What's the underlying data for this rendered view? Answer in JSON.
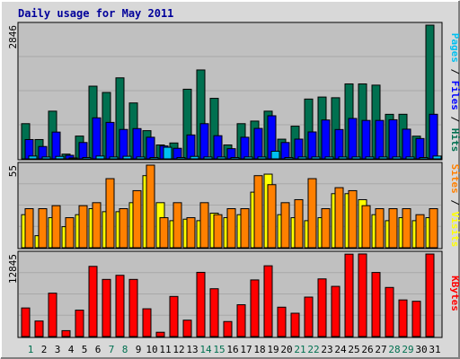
{
  "chart_data": {
    "type": "bar",
    "title": "Daily usage for May 2011",
    "categories": [
      "1",
      "2",
      "3",
      "4",
      "5",
      "6",
      "7",
      "8",
      "9",
      "10",
      "11",
      "12",
      "13",
      "14",
      "15",
      "16",
      "17",
      "18",
      "19",
      "20",
      "21",
      "22",
      "23",
      "24",
      "25",
      "26",
      "27",
      "28",
      "29",
      "30",
      "31"
    ],
    "weekend_days": [
      "1",
      "7",
      "8",
      "14",
      "15",
      "21",
      "22",
      "28",
      "29"
    ],
    "colors": {
      "background": "#c0c0c0",
      "frame": "#d8d8d8",
      "title": "#00009a",
      "pages": "#00c0f0",
      "files": "#0000ff",
      "hits": "#007050",
      "visits": "#ffff00",
      "sites": "#ff8000",
      "kbytes": "#ff0000",
      "weekday_label": "#000000",
      "weekend_label": "#007050"
    },
    "panels": [
      {
        "name": "hits-files-pages",
        "ymax_label": "2846",
        "ylim": [
          0,
          2846
        ],
        "legend": [
          {
            "text": "Pages",
            "color": "#00c0f0"
          },
          {
            "text": " / ",
            "color": "#000000"
          },
          {
            "text": "Files",
            "color": "#0000ff"
          },
          {
            "text": " / ",
            "color": "#000000"
          },
          {
            "text": "Hits",
            "color": "#007050"
          }
        ],
        "series": [
          {
            "name": "Hits",
            "color": "#007050",
            "values": [
              749,
              411,
              1015,
              101,
              485,
              1547,
              1413,
              1724,
              1190,
              600,
              296,
              338,
              1482,
              1892,
              1288,
              296,
              749,
              804,
              1015,
              419,
              696,
              1273,
              1316,
              1301,
              1595,
              1595,
              1569,
              948,
              949,
              483,
              2846
            ]
          },
          {
            "name": "Files",
            "color": "#0000ff",
            "values": [
              411,
              263,
              570,
              76,
              348,
              873,
              776,
              626,
              644,
              460,
              275,
              225,
              509,
              749,
              493,
              217,
              460,
              648,
              917,
              348,
              420,
              573,
              827,
              624,
              860,
              818,
              818,
              832,
              632,
              433,
              949
            ]
          },
          {
            "name": "Pages",
            "color": "#00c0f0",
            "values": [
              60,
              40,
              53,
              20,
              28,
              60,
              40,
              55,
              40,
              28,
              247,
              28,
              53,
              40,
              40,
              28,
              40,
              40,
              162,
              28,
              40,
              40,
              40,
              40,
              40,
              40,
              40,
              40,
              40,
              28,
              60
            ]
          }
        ]
      },
      {
        "name": "visits-sites",
        "ymax_label": "55",
        "ylim": [
          0,
          55
        ],
        "legend": [
          {
            "text": "Sites",
            "color": "#ff8000"
          },
          {
            "text": " / ",
            "color": "#000000"
          },
          {
            "text": "Visits",
            "color": "#ffff00"
          }
        ],
        "series": [
          {
            "name": "Visits",
            "color": "#ffff00",
            "values": [
              22,
              8,
              20,
              14,
              22,
              26,
              24,
              24,
              30,
              48,
              30,
              18,
              19,
              18,
              23,
              20,
              22,
              37,
              49,
              22,
              20,
              18,
              20,
              36,
              36,
              32,
              22,
              18,
              20,
              18,
              20
            ]
          },
          {
            "name": "Sites",
            "color": "#ff8000",
            "values": [
              26,
              26,
              28,
              20,
              28,
              30,
              46,
              26,
              38,
              55,
              20,
              30,
              20,
              30,
              22,
              26,
              26,
              48,
              42,
              30,
              32,
              46,
              26,
              40,
              38,
              28,
              26,
              26,
              26,
              22,
              26
            ]
          }
        ]
      },
      {
        "name": "kbytes",
        "ymax_label": "12845",
        "ylim": [
          0,
          12845
        ],
        "legend": [
          {
            "text": "KBytes",
            "color": "#ff0000"
          }
        ],
        "series": [
          {
            "name": "KBytes",
            "color": "#ff0000",
            "values": [
              4450,
              2420,
              6750,
              920,
              4110,
              10920,
              8890,
              9530,
              8890,
              4320,
              670,
              6240,
              2550,
              9990,
              7440,
              2340,
              4950,
              8810,
              11010,
              4570,
              3630,
              6140,
              8970,
              7810,
              12820,
              12850,
              9970,
              7640,
              5700,
              5490,
              12840
            ]
          }
        ]
      }
    ]
  }
}
